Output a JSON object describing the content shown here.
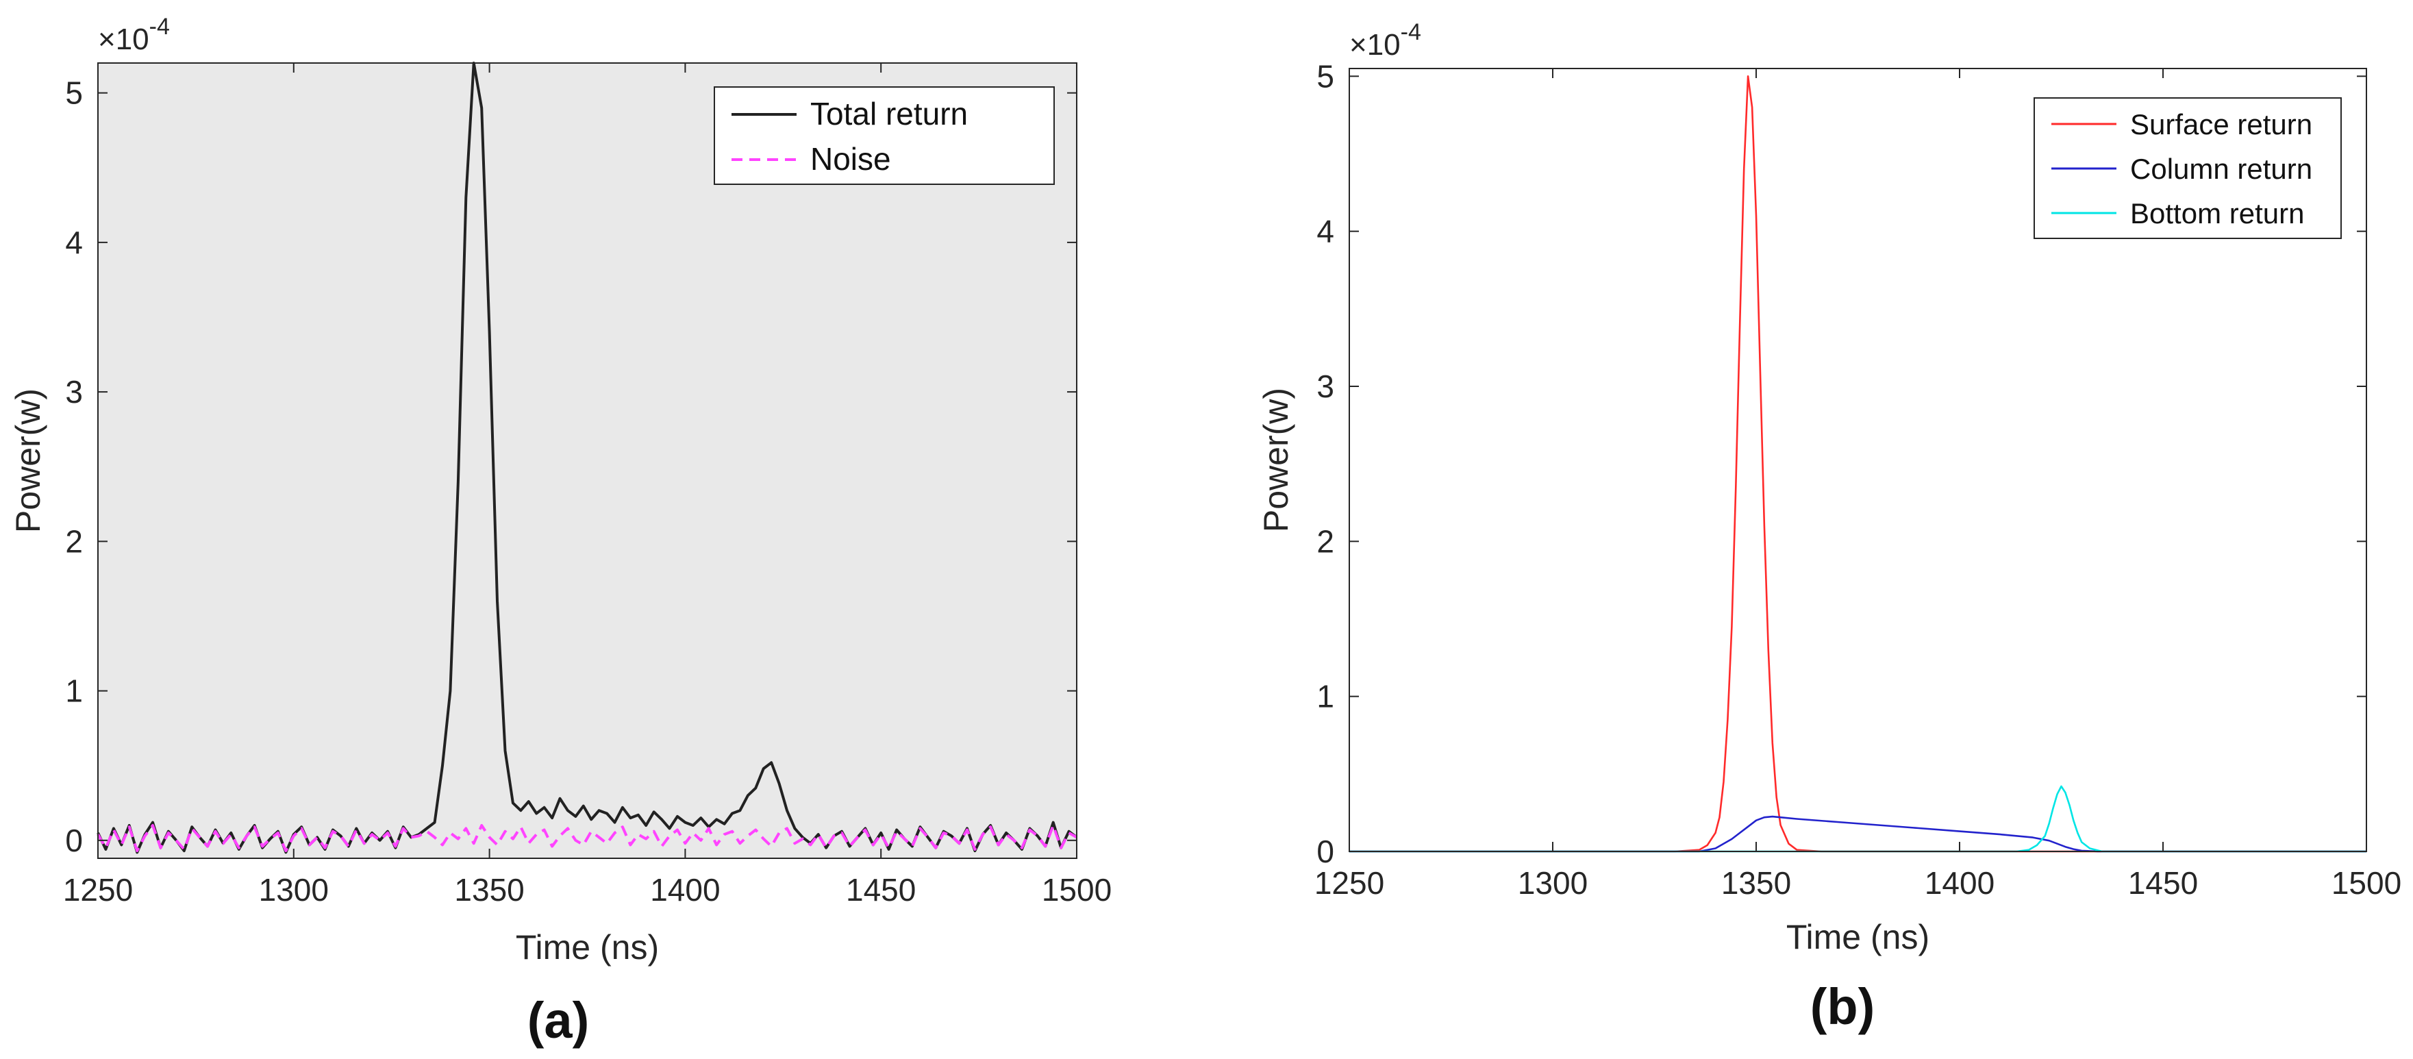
{
  "chart_data": [
    {
      "type": "line",
      "panel_label": "(a)",
      "xlabel": "Time (ns)",
      "ylabel": "Power(w)",
      "exponent": "×10-4",
      "exponent_base": "×10",
      "exponent_power": "-4",
      "xlim": [
        1250,
        1500
      ],
      "ylim": [
        -0.12,
        5.2
      ],
      "xticks": [
        1250,
        1300,
        1350,
        1400,
        1450,
        1500
      ],
      "xtick_labels": [
        "1250",
        "1300",
        "1350",
        "1400",
        "1450",
        "1500"
      ],
      "yticks": [
        0,
        1,
        2,
        3,
        4,
        5
      ],
      "ytick_labels": [
        "0",
        "1",
        "2",
        "3",
        "4",
        "5"
      ],
      "grid": false,
      "legend_position": "top-right",
      "axes_color": "#e9e9e9",
      "series": [
        {
          "name": "Total return",
          "color": "#222222",
          "dash": "solid",
          "x": [
            1250,
            1252,
            1254,
            1256,
            1258,
            1260,
            1262,
            1264,
            1266,
            1268,
            1270,
            1272,
            1274,
            1276,
            1278,
            1280,
            1282,
            1284,
            1286,
            1288,
            1290,
            1292,
            1294,
            1296,
            1298,
            1300,
            1302,
            1304,
            1306,
            1308,
            1310,
            1312,
            1314,
            1316,
            1318,
            1320,
            1322,
            1324,
            1326,
            1328,
            1330,
            1332,
            1334,
            1336,
            1338,
            1340,
            1342,
            1344,
            1346,
            1348,
            1350,
            1352,
            1354,
            1356,
            1358,
            1360,
            1362,
            1364,
            1366,
            1368,
            1370,
            1372,
            1374,
            1376,
            1378,
            1380,
            1382,
            1384,
            1386,
            1388,
            1390,
            1392,
            1394,
            1396,
            1398,
            1400,
            1402,
            1404,
            1406,
            1408,
            1410,
            1412,
            1414,
            1416,
            1418,
            1420,
            1422,
            1424,
            1426,
            1428,
            1430,
            1432,
            1434,
            1436,
            1438,
            1440,
            1442,
            1444,
            1446,
            1448,
            1450,
            1452,
            1454,
            1456,
            1458,
            1460,
            1462,
            1464,
            1466,
            1468,
            1470,
            1472,
            1474,
            1476,
            1478,
            1480,
            1482,
            1484,
            1486,
            1488,
            1490,
            1492,
            1494,
            1496,
            1498,
            1500
          ],
          "y": [
            0.05,
            -0.06,
            0.08,
            -0.03,
            0.1,
            -0.08,
            0.04,
            0.12,
            -0.05,
            0.06,
            0.0,
            -0.07,
            0.09,
            0.02,
            -0.04,
            0.07,
            -0.02,
            0.05,
            -0.06,
            0.03,
            0.1,
            -0.05,
            0.01,
            0.06,
            -0.08,
            0.04,
            0.09,
            -0.03,
            0.02,
            -0.06,
            0.07,
            0.03,
            -0.04,
            0.08,
            -0.02,
            0.05,
            0.0,
            0.06,
            -0.05,
            0.09,
            0.02,
            0.04,
            0.08,
            0.12,
            0.5,
            1.0,
            2.4,
            4.3,
            5.2,
            4.9,
            3.4,
            1.6,
            0.6,
            0.25,
            0.2,
            0.26,
            0.18,
            0.22,
            0.15,
            0.28,
            0.2,
            0.16,
            0.23,
            0.14,
            0.2,
            0.18,
            0.12,
            0.22,
            0.15,
            0.17,
            0.1,
            0.19,
            0.14,
            0.08,
            0.16,
            0.12,
            0.1,
            0.15,
            0.09,
            0.14,
            0.11,
            0.18,
            0.2,
            0.3,
            0.35,
            0.48,
            0.52,
            0.38,
            0.2,
            0.08,
            0.02,
            -0.02,
            0.04,
            -0.05,
            0.03,
            0.06,
            -0.04,
            0.02,
            0.08,
            -0.03,
            0.05,
            -0.06,
            0.07,
            0.01,
            -0.04,
            0.09,
            0.02,
            -0.05,
            0.06,
            0.03,
            -0.02,
            0.08,
            -0.07,
            0.04,
            0.1,
            -0.03,
            0.05,
            0.0,
            -0.06,
            0.08,
            0.03,
            -0.04,
            0.12,
            -0.05,
            0.06,
            0.02
          ]
        },
        {
          "name": "Noise",
          "color": "#ff44ff",
          "dash": "dashed",
          "x": [
            1250,
            1252,
            1254,
            1256,
            1258,
            1260,
            1262,
            1264,
            1266,
            1268,
            1270,
            1272,
            1274,
            1276,
            1278,
            1280,
            1282,
            1284,
            1286,
            1288,
            1290,
            1292,
            1294,
            1296,
            1298,
            1300,
            1302,
            1304,
            1306,
            1308,
            1310,
            1312,
            1314,
            1316,
            1318,
            1320,
            1322,
            1324,
            1326,
            1328,
            1330,
            1332,
            1334,
            1336,
            1338,
            1340,
            1342,
            1344,
            1346,
            1348,
            1350,
            1352,
            1354,
            1356,
            1358,
            1360,
            1362,
            1364,
            1366,
            1368,
            1370,
            1372,
            1374,
            1376,
            1378,
            1380,
            1382,
            1384,
            1386,
            1388,
            1390,
            1392,
            1394,
            1396,
            1398,
            1400,
            1402,
            1404,
            1406,
            1408,
            1410,
            1412,
            1414,
            1416,
            1418,
            1420,
            1422,
            1424,
            1426,
            1428,
            1430,
            1432,
            1434,
            1436,
            1438,
            1440,
            1442,
            1444,
            1446,
            1448,
            1450,
            1452,
            1454,
            1456,
            1458,
            1460,
            1462,
            1464,
            1466,
            1468,
            1470,
            1472,
            1474,
            1476,
            1478,
            1480,
            1482,
            1484,
            1486,
            1488,
            1490,
            1492,
            1494,
            1496,
            1498,
            1500
          ],
          "y": [
            0.04,
            -0.05,
            0.07,
            -0.03,
            0.09,
            -0.07,
            0.03,
            0.1,
            -0.05,
            0.05,
            0.0,
            -0.06,
            0.08,
            0.02,
            -0.04,
            0.06,
            -0.02,
            0.04,
            -0.05,
            0.03,
            0.09,
            -0.04,
            0.01,
            0.05,
            -0.07,
            0.03,
            0.08,
            -0.03,
            0.02,
            -0.05,
            0.06,
            0.03,
            -0.04,
            0.07,
            -0.02,
            0.04,
            0.0,
            0.05,
            -0.04,
            0.08,
            0.02,
            0.03,
            0.06,
            0.02,
            -0.03,
            0.05,
            0.01,
            0.08,
            -0.02,
            0.1,
            0.02,
            -0.03,
            0.06,
            0.01,
            0.09,
            -0.02,
            0.04,
            0.07,
            -0.04,
            0.03,
            0.08,
            0.0,
            -0.03,
            0.06,
            0.02,
            -0.02,
            0.05,
            0.09,
            -0.03,
            0.04,
            0.01,
            0.06,
            -0.04,
            0.03,
            0.07,
            -0.02,
            0.05,
            0.0,
            0.08,
            -0.03,
            0.04,
            0.06,
            -0.02,
            0.03,
            0.07,
            0.01,
            -0.04,
            0.05,
            0.08,
            -0.02,
            0.01,
            -0.03,
            0.04,
            -0.05,
            0.03,
            0.05,
            -0.04,
            0.02,
            0.07,
            -0.03,
            0.04,
            -0.05,
            0.06,
            0.01,
            -0.04,
            0.08,
            0.02,
            -0.05,
            0.05,
            0.03,
            -0.02,
            0.07,
            -0.06,
            0.04,
            0.09,
            -0.03,
            0.04,
            0.0,
            -0.05,
            0.07,
            0.03,
            -0.04,
            0.1,
            -0.05,
            0.05,
            0.02
          ]
        }
      ]
    },
    {
      "type": "line",
      "panel_label": "(b)",
      "xlabel": "Time (ns)",
      "ylabel": "Power(w)",
      "exponent": "×10-4",
      "exponent_base": "×10",
      "exponent_power": "-4",
      "xlim": [
        1250,
        1500
      ],
      "ylim": [
        0,
        5.05
      ],
      "xticks": [
        1250,
        1300,
        1350,
        1400,
        1450,
        1500
      ],
      "xtick_labels": [
        "1250",
        "1300",
        "1350",
        "1400",
        "1450",
        "1500"
      ],
      "yticks": [
        0,
        1,
        2,
        3,
        4,
        5
      ],
      "ytick_labels": [
        "0",
        "1",
        "2",
        "3",
        "4",
        "5"
      ],
      "grid": false,
      "legend_position": "top-right",
      "axes_color": "#ffffff",
      "series": [
        {
          "name": "Surface return",
          "color": "#ff2a2a",
          "dash": "solid",
          "x": [
            1250,
            1330,
            1336,
            1338,
            1340,
            1341,
            1342,
            1343,
            1344,
            1345,
            1346,
            1347,
            1348,
            1349,
            1350,
            1351,
            1352,
            1353,
            1354,
            1355,
            1356,
            1358,
            1360,
            1366,
            1500
          ],
          "y": [
            0,
            0,
            0.01,
            0.04,
            0.12,
            0.22,
            0.45,
            0.85,
            1.45,
            2.35,
            3.4,
            4.4,
            5.0,
            4.8,
            4.1,
            3.1,
            2.1,
            1.3,
            0.7,
            0.35,
            0.17,
            0.05,
            0.01,
            0,
            0
          ]
        },
        {
          "name": "Column return",
          "color": "#2222cc",
          "dash": "solid",
          "x": [
            1250,
            1336,
            1340,
            1344,
            1348,
            1350,
            1352,
            1354,
            1356,
            1360,
            1370,
            1380,
            1390,
            1400,
            1410,
            1418,
            1422,
            1424,
            1426,
            1428,
            1430,
            1434,
            1500
          ],
          "y": [
            0,
            0,
            0.02,
            0.08,
            0.16,
            0.2,
            0.22,
            0.225,
            0.22,
            0.21,
            0.19,
            0.17,
            0.15,
            0.13,
            0.11,
            0.09,
            0.07,
            0.05,
            0.03,
            0.015,
            0.005,
            0,
            0
          ]
        },
        {
          "name": "Bottom return",
          "color": "#00e5e5",
          "dash": "solid",
          "x": [
            1250,
            1414,
            1417,
            1419,
            1421,
            1422,
            1423,
            1424,
            1425,
            1426,
            1427,
            1428,
            1429,
            1430,
            1432,
            1435,
            1500
          ],
          "y": [
            0,
            0,
            0.01,
            0.04,
            0.1,
            0.18,
            0.28,
            0.37,
            0.42,
            0.38,
            0.3,
            0.2,
            0.12,
            0.06,
            0.02,
            0,
            0
          ]
        }
      ]
    }
  ]
}
